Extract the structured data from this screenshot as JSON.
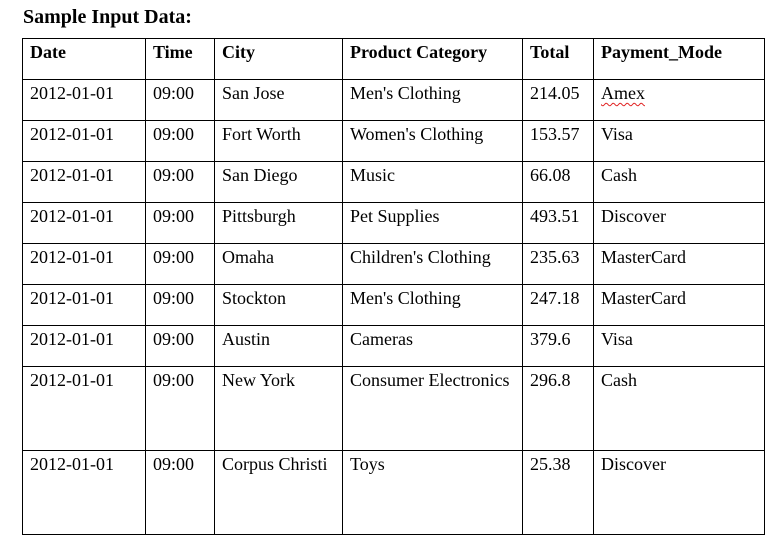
{
  "document": {
    "heading": "Sample Input Data:"
  },
  "table": {
    "headers": {
      "date": "Date",
      "time": "Time",
      "city": "City",
      "category": "Product Category",
      "total": "Total",
      "payment": "Payment_Mode"
    },
    "rows": [
      {
        "date": "2012-01-01",
        "time": "09:00",
        "city": "San Jose",
        "category": "Men's Clothing",
        "total": "214.05",
        "payment": "Amex"
      },
      {
        "date": "2012-01-01",
        "time": "09:00",
        "city": "Fort Worth",
        "category": "Women's Clothing",
        "total": "153.57",
        "payment": "Visa"
      },
      {
        "date": "2012-01-01",
        "time": "09:00",
        "city": "San Diego",
        "category": "Music",
        "total": "66.08",
        "payment": "Cash"
      },
      {
        "date": "2012-01-01",
        "time": "09:00",
        "city": "Pittsburgh",
        "category": "Pet Supplies",
        "total": "493.51",
        "payment": "Discover"
      },
      {
        "date": "2012-01-01",
        "time": "09:00",
        "city": "Omaha",
        "category": "Children's Clothing",
        "total": "235.63",
        "payment": "MasterCard"
      },
      {
        "date": "2012-01-01",
        "time": "09:00",
        "city": "Stockton",
        "category": "Men's Clothing",
        "total": "247.18",
        "payment": "MasterCard"
      },
      {
        "date": "2012-01-01",
        "time": "09:00",
        "city": "Austin",
        "category": "Cameras",
        "total": "379.6",
        "payment": "Visa"
      },
      {
        "date": "2012-01-01",
        "time": "09:00",
        "city": "New York",
        "category": "Consumer Electronics",
        "total": "296.8",
        "payment": "Cash"
      },
      {
        "date": "2012-01-01",
        "time": "09:00",
        "city": "Corpus Christi",
        "category": "Toys",
        "total": "25.38",
        "payment": "Discover"
      }
    ]
  },
  "colors": {
    "text": "#000000",
    "border": "#000000",
    "spellcheck_underline": "#e02020"
  }
}
